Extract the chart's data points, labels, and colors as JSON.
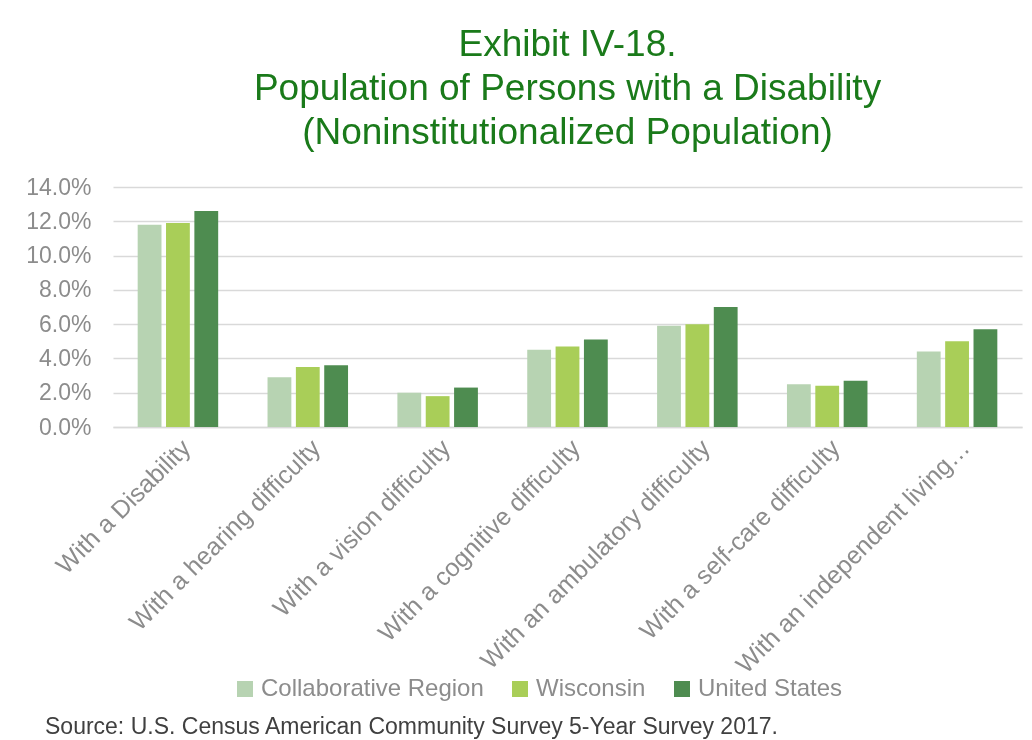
{
  "chart_data": {
    "type": "bar",
    "title": "Exhibit IV-18.\nPopulation of Persons with a Disability\n(Noninstitutionalized Population)",
    "categories": [
      "With a Disability",
      "With a hearing difficulty",
      "With a vision difficulty",
      "With a cognitive difficulty",
      "With an ambulatory difficulty",
      "With a self-care difficulty",
      "With an independent living…"
    ],
    "series": [
      {
        "name": "Collaborative Region",
        "color": "#b7d3b2",
        "values": [
          11.8,
          2.9,
          2.0,
          4.5,
          5.9,
          2.5,
          4.4
        ]
      },
      {
        "name": "Wisconsin",
        "color": "#a9ce58",
        "values": [
          11.9,
          3.5,
          1.8,
          4.7,
          6.0,
          2.4,
          5.0
        ]
      },
      {
        "name": "United States",
        "color": "#4e8c50",
        "values": [
          12.6,
          3.6,
          2.3,
          5.1,
          7.0,
          2.7,
          5.7
        ]
      }
    ],
    "ylim": [
      0,
      14
    ],
    "yticks": [
      {
        "value": 0,
        "label": "0.0%"
      },
      {
        "value": 2,
        "label": "2.0%"
      },
      {
        "value": 4,
        "label": "4.0%"
      },
      {
        "value": 6,
        "label": "6.0%"
      },
      {
        "value": 8,
        "label": "8.0%"
      },
      {
        "value": 10,
        "label": "10.0%"
      },
      {
        "value": 12,
        "label": "12.0%"
      },
      {
        "value": 14,
        "label": "14.0%"
      }
    ],
    "grid": "y",
    "legend": "bottom",
    "annotations": [
      "Source: U.S. Census American Community Survey 5-Year Survey 2017."
    ]
  }
}
